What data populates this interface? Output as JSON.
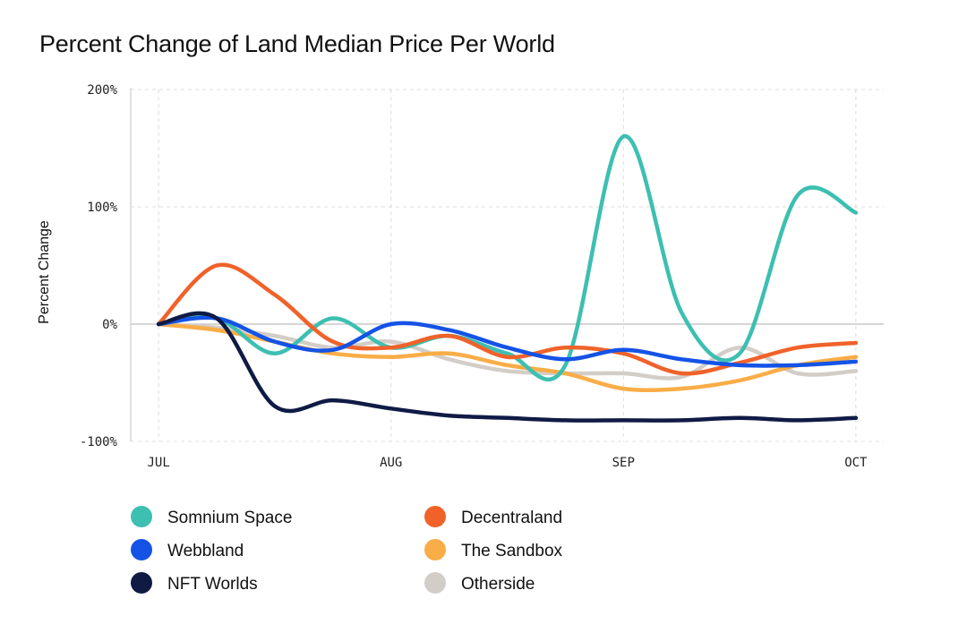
{
  "chart_data": {
    "type": "line",
    "title": "Percent Change of Land Median Price Per World",
    "ylabel": "Percent Change",
    "xlabel": "",
    "x": [
      0,
      0.25,
      0.5,
      0.75,
      1,
      1.25,
      1.5,
      1.75,
      2,
      2.25,
      2.5,
      2.75,
      3
    ],
    "x_ticks": [
      {
        "value": 0,
        "label": "JUL"
      },
      {
        "value": 1,
        "label": "AUG"
      },
      {
        "value": 2,
        "label": "SEP"
      },
      {
        "value": 3,
        "label": "OCT"
      }
    ],
    "y_ticks": [
      {
        "value": -100,
        "label": "-100%"
      },
      {
        "value": 0,
        "label": "0%"
      },
      {
        "value": 100,
        "label": "100%"
      },
      {
        "value": 200,
        "label": "200%"
      }
    ],
    "ylim": [
      -100,
      200
    ],
    "xlim": [
      -0.12,
      3.12
    ],
    "grid": true,
    "legend_position": "bottom",
    "series": [
      {
        "name": "Somnium Space",
        "color": "#3dbfb1",
        "values": [
          0,
          5,
          -25,
          5,
          -20,
          -10,
          -25,
          -35,
          160,
          10,
          -25,
          110,
          95
        ]
      },
      {
        "name": "Decentraland",
        "color": "#f0622a",
        "values": [
          0,
          50,
          25,
          -15,
          -20,
          -10,
          -28,
          -20,
          -25,
          -42,
          -33,
          -20,
          -16
        ]
      },
      {
        "name": "Webbland",
        "color": "#1453e6",
        "values": [
          0,
          5,
          -15,
          -22,
          0,
          -5,
          -20,
          -30,
          -22,
          -30,
          -35,
          -35,
          -32
        ]
      },
      {
        "name": "The Sandbox",
        "color": "#f9ad47",
        "values": [
          0,
          -5,
          -15,
          -25,
          -28,
          -25,
          -35,
          -42,
          -55,
          -55,
          -48,
          -35,
          -28
        ]
      },
      {
        "name": "NFT Worlds",
        "color": "#0f1b45",
        "values": [
          0,
          5,
          -70,
          -65,
          -72,
          -78,
          -80,
          -82,
          -82,
          -82,
          -80,
          -82,
          -80
        ]
      },
      {
        "name": "Otherside",
        "color": "#d3cdc7",
        "values": [
          0,
          -3,
          -10,
          -20,
          -15,
          -30,
          -40,
          -42,
          -42,
          -45,
          -20,
          -42,
          -40
        ]
      }
    ]
  }
}
